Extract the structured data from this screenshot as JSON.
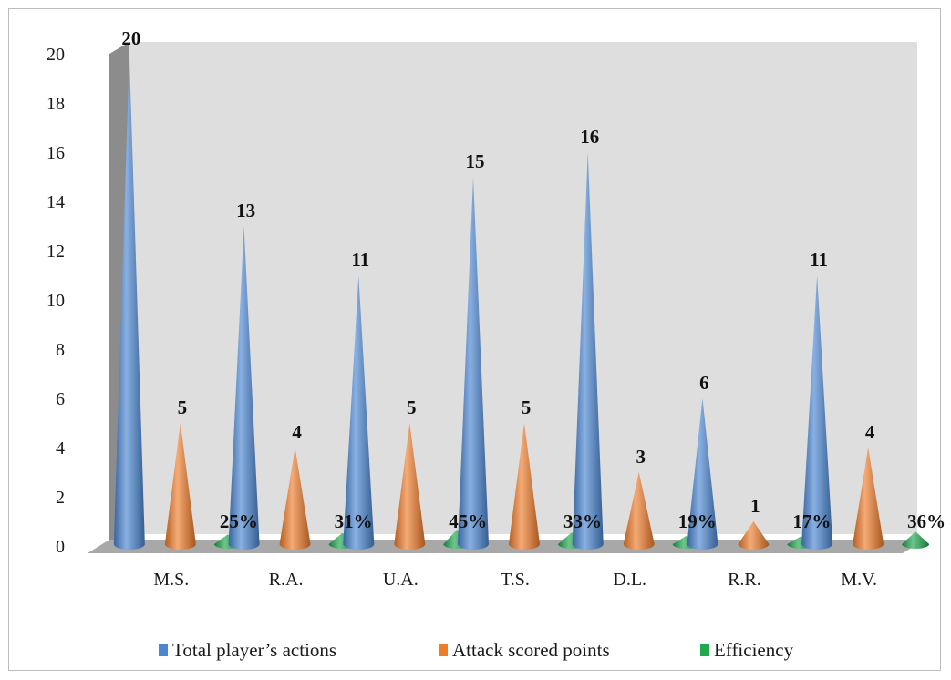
{
  "chart_data": {
    "type": "bar",
    "shape": "cone-3d",
    "categories": [
      "M.S.",
      "R.A.",
      "U.A.",
      "T.S.",
      "D.L.",
      "R.R.",
      "M.V."
    ],
    "series": [
      {
        "name": "Total player’s actions",
        "values": [
          20,
          13,
          11,
          15,
          16,
          6,
          11
        ],
        "labels": [
          "20",
          "13",
          "11",
          "15",
          "16",
          "6",
          "11"
        ],
        "color": "#4a86d2"
      },
      {
        "name": "Attack scored points",
        "values": [
          5,
          4,
          5,
          5,
          3,
          1,
          4
        ],
        "labels": [
          "5",
          "4",
          "5",
          "5",
          "3",
          "1",
          "4"
        ],
        "color": "#f07c2a"
      },
      {
        "name": "Efficiency",
        "values": [
          0.25,
          0.31,
          0.45,
          0.33,
          0.19,
          0.17,
          0.36
        ],
        "labels": [
          "25%",
          "31%",
          "45%",
          "33%",
          "19%",
          "17%",
          "36%"
        ],
        "color": "#1fa84e"
      }
    ],
    "yticks": [
      "0",
      "2",
      "4",
      "6",
      "8",
      "10",
      "12",
      "14",
      "16",
      "18",
      "20"
    ],
    "ylim": [
      0,
      20
    ],
    "grid": false,
    "legend": "bottom"
  }
}
